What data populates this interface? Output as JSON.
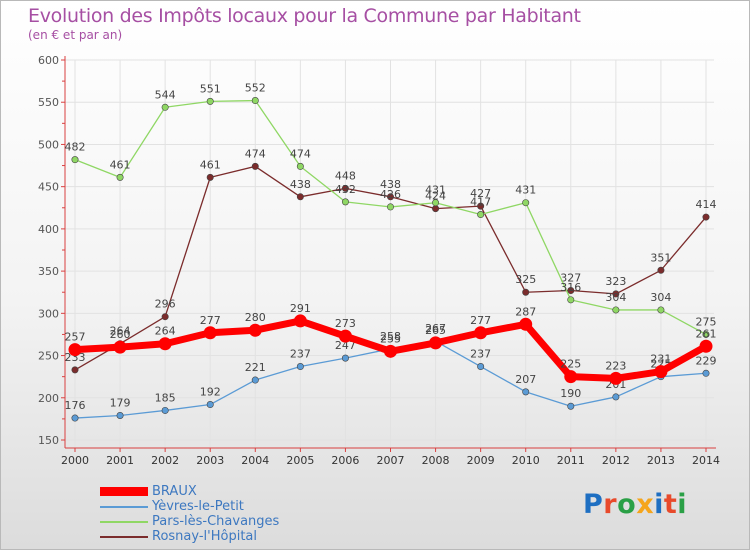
{
  "header": {
    "title": "Evolution des Impôts locaux pour la Commune par Habitant",
    "subtitle": "(en € et par an)"
  },
  "brand": {
    "text": "Proxiti",
    "colors": [
      "#1e6fc2",
      "#e84a2b",
      "#2aa046",
      "#f5a51c",
      "#1e6fc2",
      "#e84a2b",
      "#2aa046"
    ]
  },
  "chart_data": {
    "type": "line",
    "title": "Evolution des Impôts locaux pour la Commune par Habitant",
    "subtitle": "(en € et par an)",
    "xlabel": "",
    "ylabel": "",
    "ylim": [
      150,
      600
    ],
    "yticks": [
      150,
      200,
      250,
      300,
      350,
      400,
      450,
      500,
      550,
      600
    ],
    "grid": true,
    "legend": "bottom-left",
    "categories": [
      "2000",
      "2001",
      "2002",
      "2003",
      "2004",
      "2005",
      "2006",
      "2007",
      "2008",
      "2009",
      "2010",
      "2011",
      "2012",
      "2013",
      "2014"
    ],
    "series": [
      {
        "name": "BRAUX",
        "color": "#ff0000",
        "values": [
          257,
          260,
          264,
          277,
          280,
          291,
          273,
          255,
          265,
          277,
          287,
          225,
          223,
          231,
          261
        ]
      },
      {
        "name": "Yèvres-le-Petit",
        "color": "#5b9bd5",
        "values": [
          176,
          179,
          185,
          192,
          221,
          237,
          247,
          258,
          267,
          237,
          207,
          190,
          201,
          225,
          229
        ]
      },
      {
        "name": "Pars-lès-Chavanges",
        "color": "#8fd764",
        "values": [
          482,
          461,
          544,
          551,
          552,
          474,
          432,
          426,
          431,
          417,
          431,
          316,
          304,
          304,
          275
        ]
      },
      {
        "name": "Rosnay-l'Hôpital",
        "color": "#7b2c2c",
        "values": [
          233,
          264,
          296,
          461,
          474,
          438,
          448,
          438,
          424,
          427,
          325,
          327,
          323,
          351,
          414
        ]
      }
    ]
  }
}
